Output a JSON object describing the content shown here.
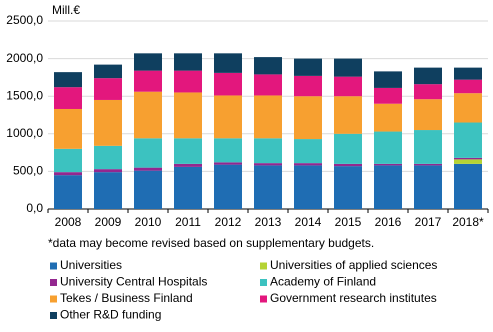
{
  "chart_data": {
    "type": "stacked_bar",
    "y_unit_label": "Mill.€",
    "footnote": "*data may become revised based on supplementary budgets.",
    "categories": [
      "2008",
      "2009",
      "2010",
      "2011",
      "2012",
      "2013",
      "2014",
      "2015",
      "2016",
      "2017",
      "2018*"
    ],
    "series": [
      {
        "name": "Universities",
        "color": "#1f6db3",
        "values": [
          450,
          490,
          510,
          560,
          590,
          580,
          580,
          570,
          580,
          580,
          600
        ]
      },
      {
        "name": "Universities of applied sciences",
        "color": "#b5d334",
        "values": [
          0,
          0,
          0,
          0,
          0,
          0,
          0,
          0,
          0,
          0,
          60
        ]
      },
      {
        "name": "University Central Hospitals",
        "color": "#93278f",
        "values": [
          40,
          40,
          40,
          40,
          30,
          30,
          30,
          30,
          20,
          20,
          20
        ]
      },
      {
        "name": "Academy of Finland",
        "color": "#3cc2c0",
        "values": [
          310,
          310,
          390,
          340,
          320,
          330,
          320,
          400,
          430,
          450,
          470
        ]
      },
      {
        "name": "Tekes / Business Finland",
        "color": "#f7a030",
        "values": [
          530,
          610,
          620,
          610,
          570,
          570,
          570,
          500,
          370,
          410,
          390
        ]
      },
      {
        "name": "Government research institutes",
        "color": "#e3177d",
        "values": [
          290,
          290,
          280,
          290,
          300,
          280,
          270,
          260,
          210,
          200,
          180
        ]
      },
      {
        "name": "Other R&D funding",
        "color": "#0f3f5f",
        "values": [
          200,
          180,
          230,
          230,
          260,
          230,
          230,
          240,
          220,
          220,
          160
        ]
      }
    ],
    "ylim": [
      0,
      2500
    ],
    "yticks": [
      {
        "value": 0,
        "label": "0,0"
      },
      {
        "value": 500,
        "label": "500,0"
      },
      {
        "value": 1000,
        "label": "1000,0"
      },
      {
        "value": 1500,
        "label": "1500,0"
      },
      {
        "value": 2000,
        "label": "2000,0"
      },
      {
        "value": 2500,
        "label": "2500,0"
      }
    ],
    "grid": true
  }
}
